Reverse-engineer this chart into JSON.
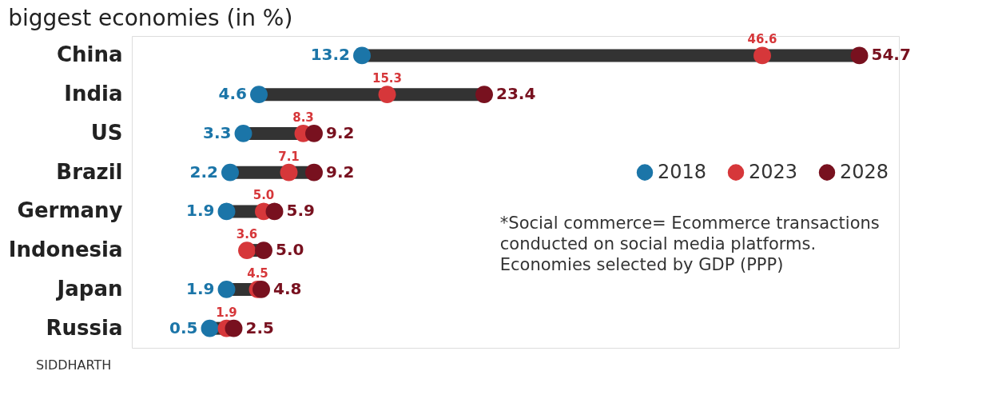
{
  "chart_data": {
    "type": "scatter",
    "title": "biggest economies (in %)",
    "orientation": "horizontal",
    "categories": [
      "China",
      "India",
      "US",
      "Brazil",
      "Germany",
      "Indonesia",
      "Japan",
      "Russia"
    ],
    "xlim": [
      -6,
      58
    ],
    "tick_labels": "y",
    "grid": false,
    "legend": "right",
    "marker": "circle",
    "series": [
      {
        "name": "2018",
        "color": "#1b75a8",
        "values": [
          13.2,
          4.6,
          3.3,
          2.2,
          1.9,
          null,
          1.9,
          0.5
        ],
        "value_labels": [
          "13.2",
          "4.6",
          "3.3",
          "2.2",
          "1.9",
          null,
          "1.9",
          "0.5"
        ]
      },
      {
        "name": "2023",
        "color": "#d6373a",
        "values": [
          46.6,
          15.3,
          8.3,
          7.1,
          5.0,
          3.6,
          4.5,
          1.9
        ],
        "value_labels": [
          "46.6",
          "15.3",
          "8.3",
          "7.1",
          "5.0",
          "3.6",
          "4.5",
          "1.9"
        ]
      },
      {
        "name": "2028",
        "color": "#78111f",
        "values": [
          54.7,
          23.4,
          9.2,
          9.2,
          5.9,
          5.0,
          4.8,
          2.5
        ],
        "value_labels": [
          "54.7",
          "23.4",
          "9.2",
          "9.2",
          "5.9",
          "5.0",
          "4.8",
          "2.5"
        ]
      }
    ],
    "annotations": [
      "*Social commerce= Ecommerce transactions conducted on social media platforms. Economies selected by GDP (PPP)",
      "SIDDHARTH"
    ]
  }
}
